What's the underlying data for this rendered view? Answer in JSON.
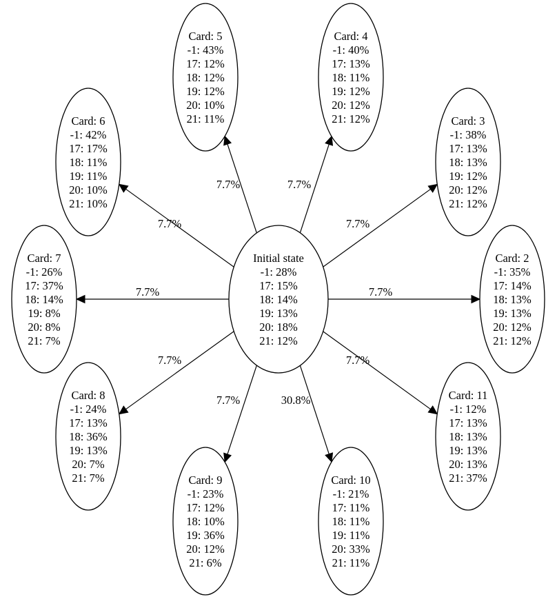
{
  "diagram": {
    "center": {
      "title": "Initial state",
      "lines": [
        "-1: 28%",
        "17: 15%",
        "18: 14%",
        "19: 13%",
        "20: 18%",
        "21: 12%"
      ]
    },
    "nodes": [
      {
        "id": "card-5",
        "title": "Card: 5",
        "lines": [
          "-1: 43%",
          "17: 12%",
          "18: 12%",
          "19: 12%",
          "20: 10%",
          "21: 11%"
        ],
        "edge_label": "7.7%"
      },
      {
        "id": "card-4",
        "title": "Card: 4",
        "lines": [
          "-1: 40%",
          "17: 13%",
          "18: 11%",
          "19: 12%",
          "20: 12%",
          "21: 12%"
        ],
        "edge_label": "7.7%"
      },
      {
        "id": "card-6",
        "title": "Card: 6",
        "lines": [
          "-1: 42%",
          "17: 17%",
          "18: 11%",
          "19: 11%",
          "20: 10%",
          "21: 10%"
        ],
        "edge_label": "7.7%"
      },
      {
        "id": "card-3",
        "title": "Card: 3",
        "lines": [
          "-1: 38%",
          "17: 13%",
          "18: 13%",
          "19: 12%",
          "20: 12%",
          "21: 12%"
        ],
        "edge_label": "7.7%"
      },
      {
        "id": "card-7",
        "title": "Card: 7",
        "lines": [
          "-1: 26%",
          "17: 37%",
          "18: 14%",
          "19: 8%",
          "20: 8%",
          "21: 7%"
        ],
        "edge_label": "7.7%"
      },
      {
        "id": "card-2",
        "title": "Card: 2",
        "lines": [
          "-1: 35%",
          "17: 14%",
          "18: 13%",
          "19: 13%",
          "20: 12%",
          "21: 12%"
        ],
        "edge_label": "7.7%"
      },
      {
        "id": "card-8",
        "title": "Card: 8",
        "lines": [
          "-1: 24%",
          "17: 13%",
          "18: 36%",
          "19: 13%",
          "20: 7%",
          "21: 7%"
        ],
        "edge_label": "7.7%"
      },
      {
        "id": "card-11",
        "title": "Card: 11",
        "lines": [
          "-1: 12%",
          "17: 13%",
          "18: 13%",
          "19: 13%",
          "20: 13%",
          "21: 37%"
        ],
        "edge_label": "7.7%"
      },
      {
        "id": "card-9",
        "title": "Card: 9",
        "lines": [
          "-1: 23%",
          "17: 12%",
          "18: 10%",
          "19: 36%",
          "20: 12%",
          "21: 6%"
        ],
        "edge_label": "7.7%"
      },
      {
        "id": "card-10",
        "title": "Card: 10",
        "lines": [
          "-1: 21%",
          "17: 11%",
          "18: 11%",
          "19: 11%",
          "20: 33%",
          "21: 11%"
        ],
        "edge_label": "30.8%"
      }
    ]
  }
}
